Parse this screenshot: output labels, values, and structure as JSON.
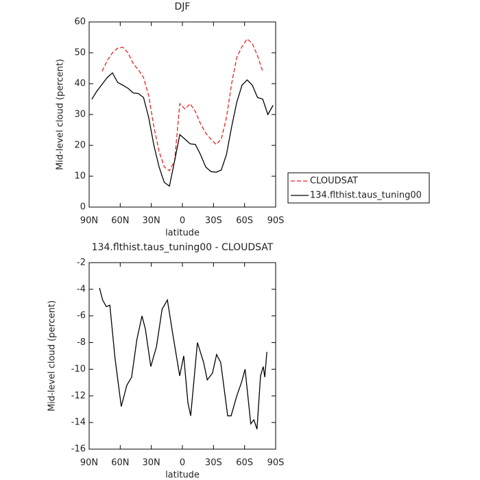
{
  "chart_data": [
    {
      "type": "line",
      "title": "DJF",
      "xlabel": "latitude",
      "ylabel": "Mid-level cloud (percent)",
      "x": [
        87.5,
        82.5,
        77.5,
        72.5,
        67.5,
        62.5,
        57.5,
        52.5,
        47.5,
        42.5,
        37.5,
        32.5,
        27.5,
        22.5,
        17.5,
        12.5,
        7.5,
        2.5,
        -2.5,
        -7.5,
        -12.5,
        -17.5,
        -22.5,
        -27.5,
        -32.5,
        -37.5,
        -42.5,
        -47.5,
        -52.5,
        -57.5,
        -62.5,
        -67.5,
        -72.5,
        -77.5,
        -82.5,
        -87.5
      ],
      "series": [
        {
          "name": "CLOUDSAT",
          "color": "#e8201e",
          "linestyle": "dashed",
          "values": [
            null,
            null,
            44,
            47.5,
            50,
            51.5,
            51.8,
            50,
            46.5,
            44.5,
            42,
            36,
            26,
            18,
            13,
            11.8,
            15,
            33.5,
            31.8,
            33.5,
            31,
            27,
            24,
            22,
            20.3,
            22,
            29,
            40,
            48.5,
            52,
            54.5,
            53,
            49,
            44,
            null,
            null
          ]
        },
        {
          "name": "134.flthist.taus_tuning00",
          "color": "#000000",
          "linestyle": "solid",
          "values": [
            34.9,
            37.6,
            39.8,
            42,
            43.5,
            40.4,
            39.5,
            38.5,
            37,
            36.8,
            35.5,
            29,
            20,
            13,
            8,
            6.8,
            15,
            23.5,
            22,
            20.5,
            20.3,
            17,
            13,
            11.5,
            11.3,
            12,
            17,
            26,
            34,
            39.5,
            41.2,
            39.5,
            35.5,
            35,
            30,
            33
          ]
        }
      ],
      "xlim": [
        90,
        -90
      ],
      "xticks": [
        {
          "value": 90,
          "label": "90N"
        },
        {
          "value": 60,
          "label": "60N"
        },
        {
          "value": 30,
          "label": "30N"
        },
        0,
        {
          "value": -30,
          "label": "30S"
        },
        {
          "value": -60,
          "label": "60S"
        },
        {
          "value": -90,
          "label": "90S"
        }
      ],
      "ylim": [
        0,
        60
      ],
      "yticks": [
        0,
        10,
        20,
        30,
        40,
        50,
        60
      ],
      "legend": "right"
    },
    {
      "type": "line",
      "title": "134.flthist.taus_tuning00 - CLOUDSAT",
      "xlabel": "latitude",
      "ylabel": "Mid-level cloud (percent)",
      "x": [
        80,
        77,
        73.5,
        70,
        65,
        59,
        53.6,
        49,
        44,
        39,
        35.7,
        30.5,
        25,
        19.6,
        14.5,
        9,
        2.6,
        -1.3,
        -5.3,
        -8,
        -14.5,
        -20.5,
        -24,
        -29,
        -33,
        -37,
        -43.7,
        -47,
        -52.5,
        -57,
        -60.5,
        -66,
        -69,
        -72,
        -75.4,
        -78,
        -79.5,
        -81.5
      ],
      "series": [
        {
          "name": "134.flthist.taus_tuning00 - CLOUDSAT",
          "color": "#000000",
          "linestyle": "solid",
          "values": [
            -3.9,
            -4.8,
            -5.3,
            -5.2,
            -9.2,
            -12.8,
            -11.2,
            -10.6,
            -7.8,
            -6,
            -7,
            -9.8,
            -8.3,
            -5.5,
            -4.8,
            -7.5,
            -10.5,
            -9,
            -12.5,
            -13.5,
            -8,
            -9.5,
            -10.8,
            -10.3,
            -8.9,
            -9.5,
            -13.5,
            -13.5,
            -12,
            -11,
            -10,
            -14.1,
            -13.8,
            -14.5,
            -10.5,
            -9.8,
            -10.6,
            -8.7
          ]
        }
      ],
      "xlim": [
        90,
        -90
      ],
      "xticks": [
        {
          "value": 90,
          "label": "90N"
        },
        {
          "value": 60,
          "label": "60N"
        },
        {
          "value": 30,
          "label": "30N"
        },
        0,
        {
          "value": -30,
          "label": "30S"
        },
        {
          "value": -60,
          "label": "60S"
        },
        {
          "value": -90,
          "label": "90S"
        }
      ],
      "ylim": [
        -16,
        -2
      ],
      "yticks": [
        -16,
        -14,
        -12,
        -10,
        -8,
        -6,
        -4,
        -2
      ]
    }
  ]
}
